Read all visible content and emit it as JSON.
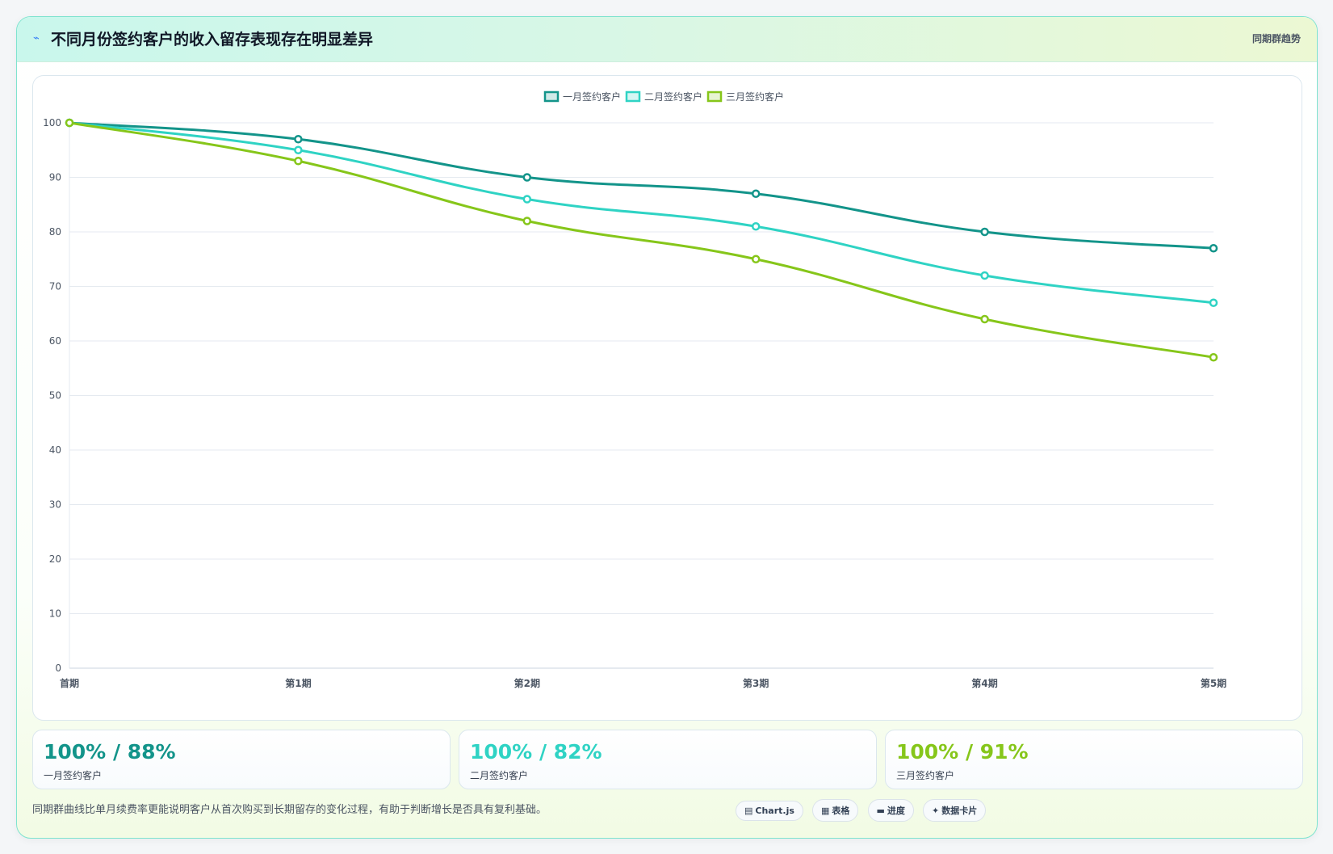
{
  "header": {
    "icon": "trend-line-icon",
    "title": "不同月份签约客户的收入留存表现存在明显差异",
    "tag": "同期群趋势"
  },
  "chart_data": {
    "type": "line",
    "categories": [
      "首期",
      "第1期",
      "第2期",
      "第3期",
      "第4期",
      "第5期"
    ],
    "ylim": [
      0,
      100
    ],
    "yticks": [
      0,
      10,
      20,
      30,
      40,
      50,
      60,
      70,
      80,
      90,
      100
    ],
    "grid": true,
    "legend_position": "top-center",
    "series": [
      {
        "name": "一月签约客户",
        "color": "#13948a",
        "values": [
          100,
          97,
          90,
          87,
          80,
          77
        ]
      },
      {
        "name": "二月签约客户",
        "color": "#2fd3c4",
        "values": [
          100,
          95,
          86,
          81,
          72,
          67
        ]
      },
      {
        "name": "三月签约客户",
        "color": "#86c61a",
        "values": [
          100,
          93,
          82,
          75,
          64,
          57
        ]
      }
    ]
  },
  "stats": [
    {
      "value": "100% / 88%",
      "label": "一月签约客户",
      "color": "#13948a"
    },
    {
      "value": "100% / 82%",
      "label": "二月签约客户",
      "color": "#2fd3c4"
    },
    {
      "value": "100% / 91%",
      "label": "三月签约客户",
      "color": "#86c61a"
    }
  ],
  "footnote": "同期群曲线比单月续费率更能说明客户从首次购买到长期留存的变化过程，有助于判断增长是否具有复利基础。",
  "pills": [
    {
      "icon": "chart-icon",
      "glyph": "▤",
      "label": "Chart.js"
    },
    {
      "icon": "table-icon",
      "glyph": "▦",
      "label": "表格"
    },
    {
      "icon": "progress-icon",
      "glyph": "▬",
      "label": "进度"
    },
    {
      "icon": "sparkle-icon",
      "glyph": "✦",
      "label": "数据卡片"
    }
  ]
}
